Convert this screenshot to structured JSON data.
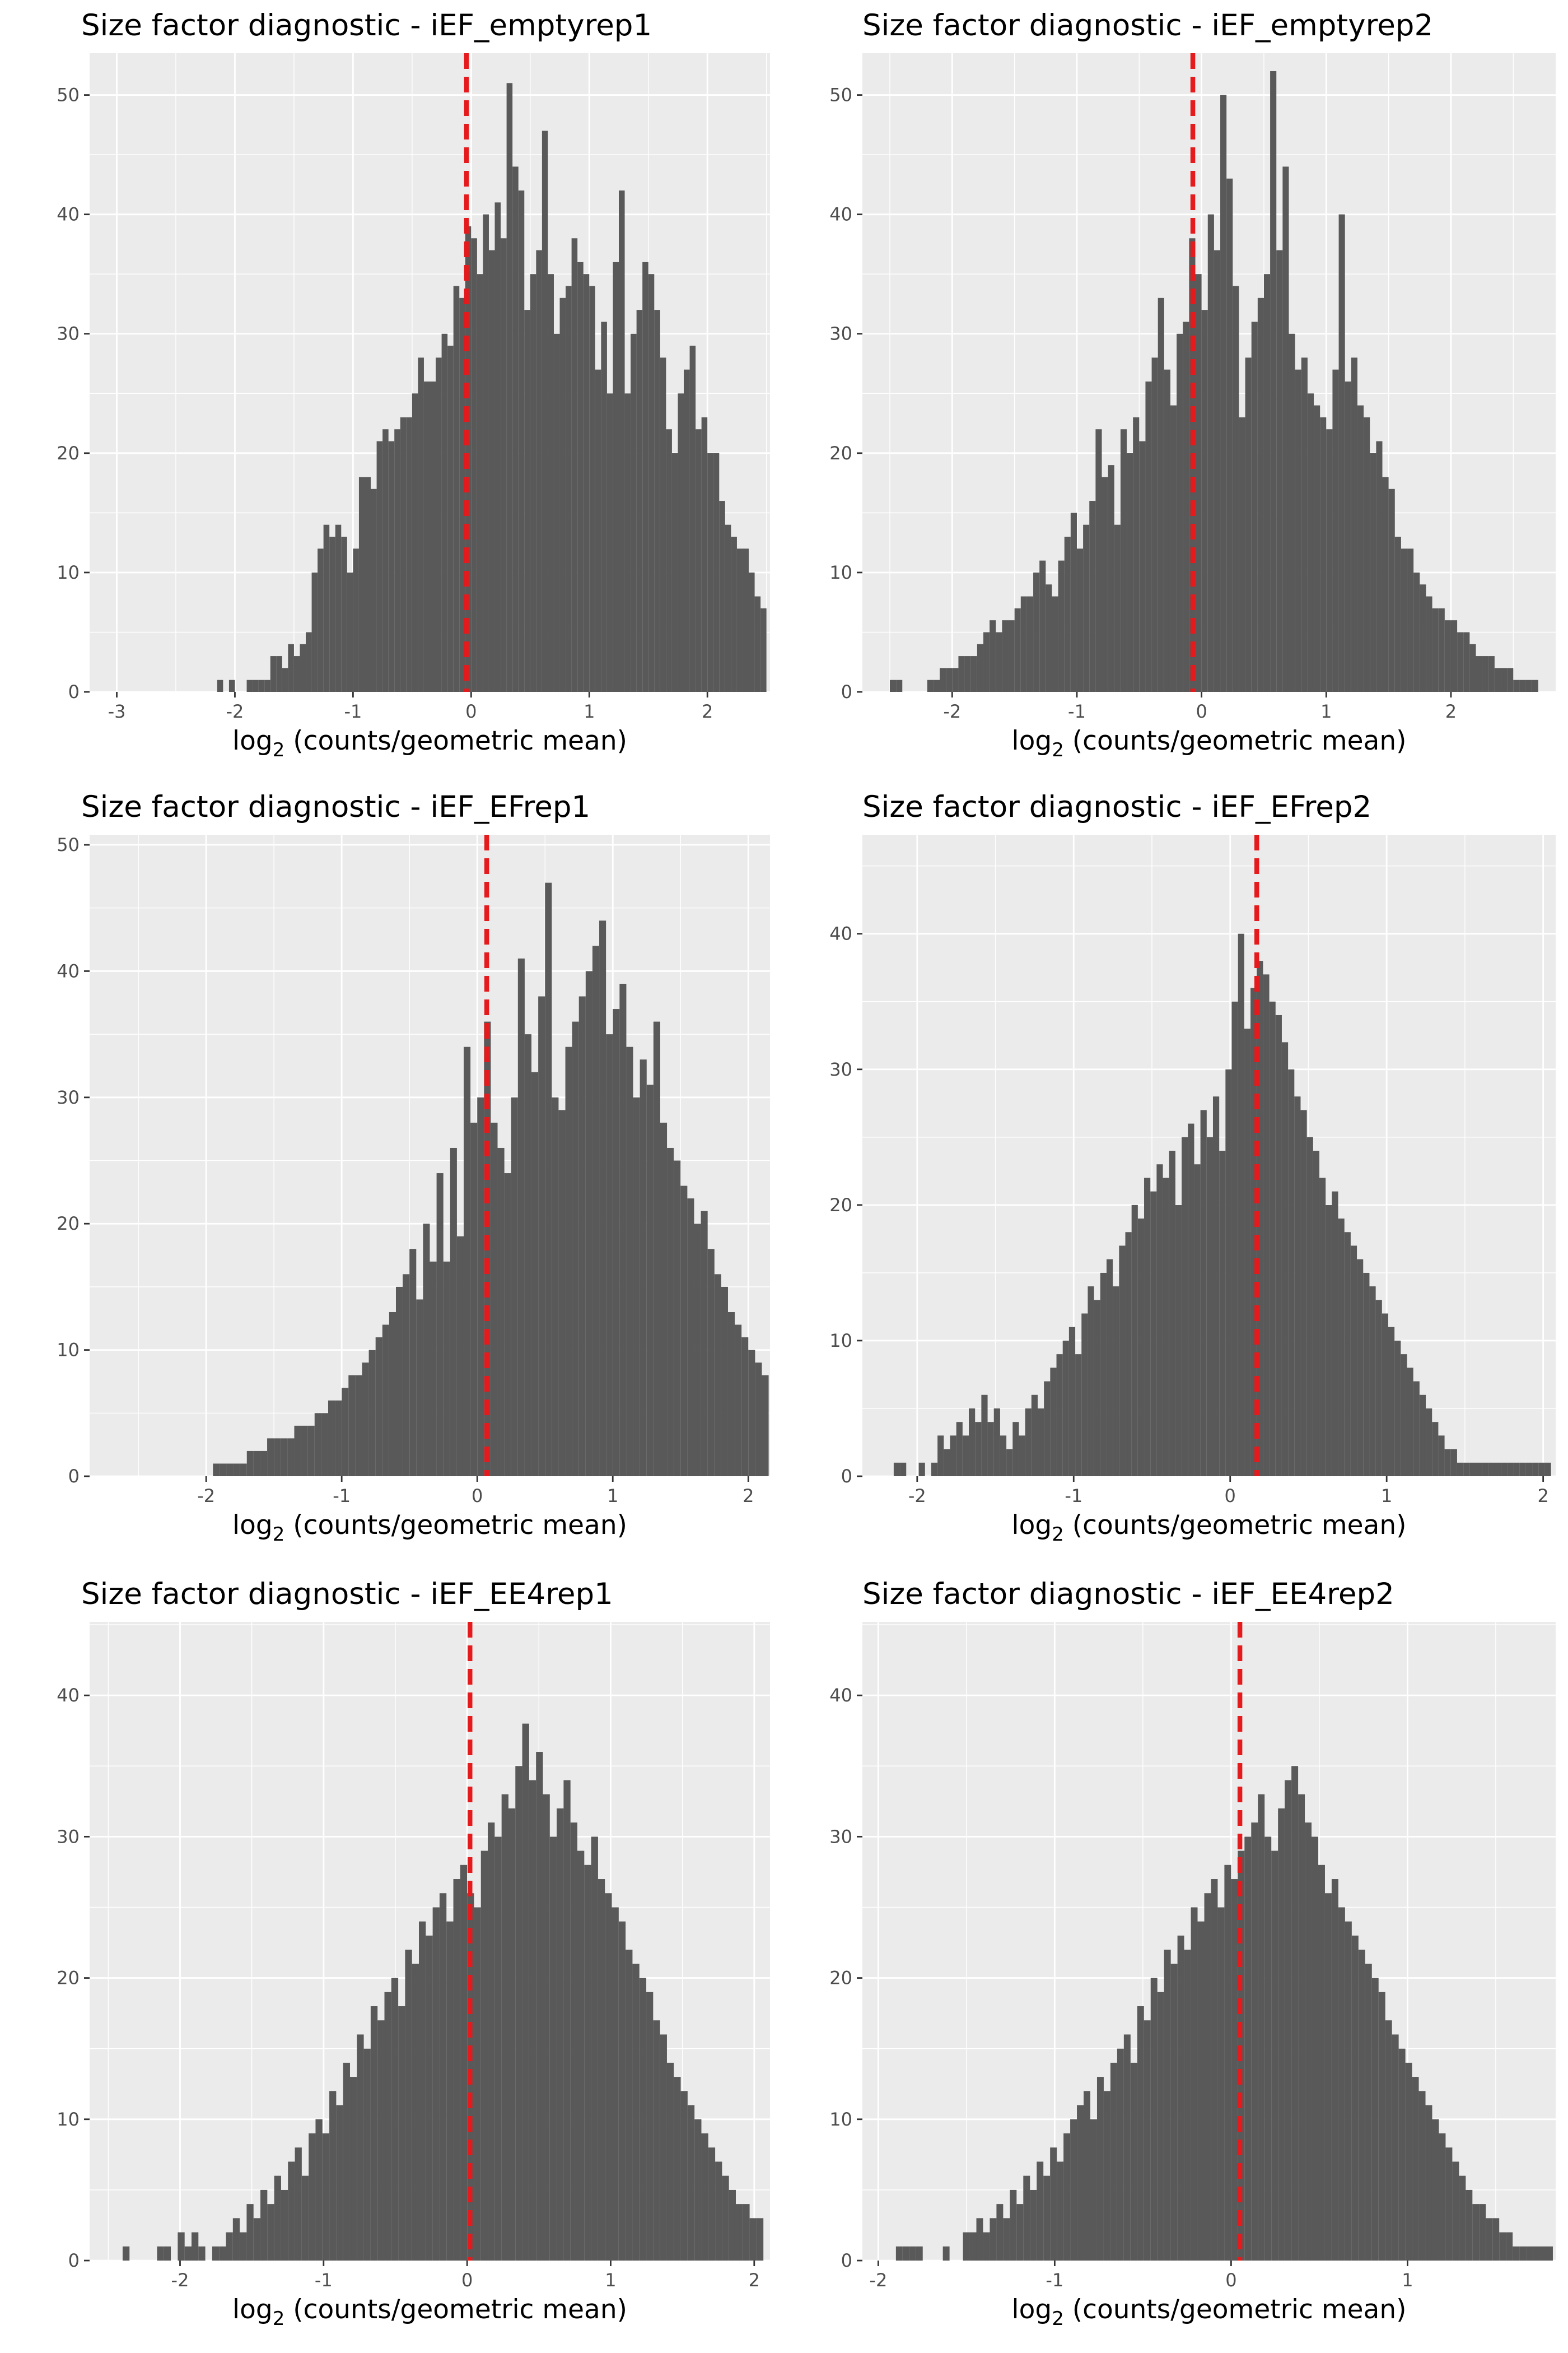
{
  "chart_data": [
    {
      "type": "bar",
      "title": "Size factor diagnostic - iEF_emptyrep1",
      "xlabel": {
        "base": "log",
        "sub": "2",
        "rest": " (counts/geometric mean)"
      },
      "ylabel": "",
      "xlim": [
        -3.23,
        2.53
      ],
      "ylim": [
        0,
        53.5
      ],
      "xticks": [
        -3,
        -2,
        -1,
        0,
        1,
        2
      ],
      "yticks": [
        0,
        10,
        20,
        30,
        40,
        50
      ],
      "vline": -0.04,
      "vline_color": "#E41A1C",
      "bar_color": "#595959",
      "bin_start": -2.15,
      "bin_width": 0.05,
      "values": [
        1,
        0,
        1,
        0,
        0,
        1,
        1,
        1,
        1,
        3,
        3,
        2,
        4,
        3,
        4,
        5,
        10,
        12,
        14,
        13,
        14,
        13,
        10,
        12,
        18,
        18,
        17,
        21,
        22,
        21,
        22,
        23,
        23,
        25,
        28,
        26,
        26,
        28,
        30,
        29,
        34,
        33,
        39,
        38,
        35,
        40,
        37,
        41,
        38,
        51,
        44,
        42,
        32,
        35,
        37,
        47,
        35,
        30,
        33,
        34,
        38,
        36,
        35,
        34,
        27,
        31,
        25,
        36,
        42,
        25,
        30,
        32,
        36,
        35,
        32,
        28,
        22,
        20,
        25,
        27,
        29,
        22,
        23,
        20,
        20,
        16,
        14,
        13,
        12,
        12,
        10,
        8,
        7,
        6,
        5,
        4,
        4,
        3,
        3,
        2,
        2,
        1,
        1,
        1
      ]
    },
    {
      "type": "bar",
      "title": "Size factor diagnostic - iEF_emptyrep2",
      "xlabel": {
        "base": "log",
        "sub": "2",
        "rest": " (counts/geometric mean)"
      },
      "ylabel": "",
      "xlim": [
        -2.72,
        2.84
      ],
      "ylim": [
        0,
        53.5
      ],
      "xticks": [
        -2,
        -1,
        0,
        1,
        2
      ],
      "yticks": [
        0,
        10,
        20,
        30,
        40,
        50
      ],
      "vline": -0.07,
      "vline_color": "#E41A1C",
      "bar_color": "#595959",
      "bin_start": -2.5,
      "bin_width": 0.05,
      "values": [
        1,
        1,
        0,
        0,
        0,
        0,
        1,
        1,
        2,
        2,
        2,
        3,
        3,
        3,
        4,
        5,
        6,
        5,
        6,
        6,
        7,
        8,
        8,
        10,
        11,
        9,
        8,
        11,
        13,
        15,
        12,
        14,
        16,
        22,
        18,
        19,
        14,
        22,
        20,
        23,
        21,
        26,
        28,
        33,
        27,
        24,
        30,
        31,
        38,
        35,
        32,
        40,
        37,
        50,
        43,
        34,
        23,
        28,
        31,
        33,
        35,
        52,
        37,
        44,
        30,
        27,
        28,
        25,
        24,
        23,
        22,
        27,
        40,
        26,
        28,
        24,
        23,
        20,
        21,
        18,
        17,
        13,
        12,
        12,
        10,
        9,
        8,
        7,
        7,
        6,
        6,
        5,
        5,
        4,
        3,
        3,
        3,
        2,
        2,
        2,
        1,
        1,
        1,
        1
      ]
    },
    {
      "type": "bar",
      "title": "Size factor diagnostic - iEF_EFrep1",
      "xlabel": {
        "base": "log",
        "sub": "2",
        "rest": " (counts/geometric mean)"
      },
      "ylabel": "",
      "xlim": [
        -2.86,
        2.16
      ],
      "ylim": [
        0,
        50.8
      ],
      "xticks": [
        -2,
        -1,
        0,
        1,
        2
      ],
      "yticks": [
        0,
        10,
        20,
        30,
        40,
        50
      ],
      "vline": 0.07,
      "vline_color": "#E41A1C",
      "bar_color": "#595959",
      "bin_start": -1.95,
      "bin_width": 0.05,
      "values": [
        1,
        1,
        1,
        1,
        1,
        2,
        2,
        2,
        3,
        3,
        3,
        3,
        4,
        4,
        4,
        5,
        5,
        6,
        6,
        7,
        8,
        8,
        9,
        10,
        11,
        12,
        13,
        15,
        16,
        18,
        14,
        20,
        17,
        24,
        17,
        26,
        19,
        34,
        28,
        30,
        36,
        28,
        26,
        24,
        30,
        41,
        35,
        32,
        38,
        47,
        30,
        29,
        34,
        36,
        38,
        40,
        42,
        44,
        35,
        37,
        39,
        34,
        30,
        33,
        31,
        36,
        28,
        26,
        25,
        23,
        22,
        20,
        21,
        18,
        16,
        15,
        13,
        12,
        11,
        10,
        9,
        8,
        7,
        7,
        6,
        5,
        5,
        4,
        3,
        3,
        2,
        2,
        2,
        1,
        1
      ]
    },
    {
      "type": "bar",
      "title": "Size factor diagnostic - iEF_EFrep2",
      "xlabel": {
        "base": "log",
        "sub": "2",
        "rest": " (counts/geometric mean)"
      },
      "ylabel": "",
      "xlim": [
        -2.35,
        2.08
      ],
      "ylim": [
        0,
        47.3
      ],
      "xticks": [
        -2,
        -1,
        0,
        1,
        2
      ],
      "yticks": [
        0,
        10,
        20,
        30,
        40
      ],
      "vline": 0.17,
      "vline_color": "#E41A1C",
      "bar_color": "#595959",
      "bin_start": -2.15,
      "bin_width": 0.04,
      "values": [
        1,
        1,
        0,
        0,
        1,
        0,
        1,
        3,
        2,
        3,
        4,
        3,
        5,
        4,
        6,
        4,
        5,
        3,
        2,
        4,
        3,
        5,
        6,
        5,
        7,
        8,
        9,
        10,
        11,
        9,
        12,
        14,
        13,
        15,
        16,
        14,
        17,
        18,
        20,
        19,
        22,
        21,
        23,
        22,
        24,
        20,
        25,
        26,
        23,
        27,
        25,
        28,
        24,
        30,
        35,
        40,
        33,
        36,
        38,
        37,
        35,
        34,
        32,
        30,
        28,
        27,
        25,
        24,
        22,
        20,
        21,
        19,
        18,
        17,
        16,
        15,
        14,
        13,
        12,
        11,
        10,
        9,
        8,
        7,
        6,
        5,
        4,
        3,
        2,
        2,
        1,
        1,
        1,
        1,
        1,
        1,
        1,
        1,
        1,
        1,
        1,
        1,
        1,
        1,
        1,
        1,
        1,
        1,
        1,
        1,
        1
      ]
    },
    {
      "type": "bar",
      "title": "Size factor diagnostic - iEF_EE4rep1",
      "xlabel": {
        "base": "log",
        "sub": "2",
        "rest": " (counts/geometric mean)"
      },
      "ylabel": "",
      "xlim": [
        -2.63,
        2.11
      ],
      "ylim": [
        0,
        45.2
      ],
      "xticks": [
        -2,
        -1,
        0,
        1,
        2
      ],
      "yticks": [
        0,
        10,
        20,
        30,
        40
      ],
      "vline": 0.02,
      "vline_color": "#E41A1C",
      "bar_color": "#595959",
      "bin_start": -2.4,
      "bin_width": 0.048,
      "values": [
        1,
        0,
        0,
        0,
        0,
        1,
        1,
        0,
        2,
        1,
        2,
        1,
        0,
        1,
        1,
        2,
        3,
        2,
        4,
        3,
        5,
        4,
        6,
        5,
        7,
        8,
        6,
        9,
        10,
        9,
        12,
        11,
        14,
        13,
        16,
        15,
        18,
        17,
        19,
        20,
        18,
        22,
        21,
        24,
        23,
        25,
        26,
        24,
        27,
        28,
        26,
        25,
        29,
        31,
        30,
        33,
        32,
        35,
        38,
        34,
        36,
        33,
        30,
        32,
        34,
        31,
        29,
        28,
        30,
        27,
        26,
        25,
        24,
        22,
        21,
        20,
        19,
        17,
        16,
        14,
        13,
        12,
        11,
        10,
        9,
        8,
        7,
        6,
        5,
        4,
        4,
        3,
        3,
        2,
        2,
        1,
        1,
        1,
        1,
        1,
        1,
        1,
        1,
        1,
        1,
        1,
        1,
        1,
        1,
        1,
        1
      ]
    },
    {
      "type": "bar",
      "title": "Size factor diagnostic - iEF_EE4rep2",
      "xlabel": {
        "base": "log",
        "sub": "2",
        "rest": " (counts/geometric mean)"
      },
      "ylabel": "",
      "xlim": [
        -2.09,
        1.84
      ],
      "ylim": [
        0,
        45.2
      ],
      "xticks": [
        -2,
        -1,
        0,
        1
      ],
      "yticks": [
        0,
        10,
        20,
        30,
        40
      ],
      "vline": 0.05,
      "vline_color": "#E41A1C",
      "bar_color": "#595959",
      "bin_start": -1.9,
      "bin_width": 0.038,
      "values": [
        1,
        1,
        1,
        1,
        0,
        0,
        0,
        1,
        0,
        0,
        2,
        2,
        3,
        2,
        3,
        4,
        3,
        5,
        4,
        6,
        5,
        7,
        6,
        8,
        7,
        9,
        10,
        11,
        12,
        10,
        13,
        12,
        14,
        15,
        16,
        14,
        18,
        17,
        20,
        19,
        22,
        21,
        23,
        22,
        25,
        24,
        26,
        27,
        25,
        28,
        27,
        29,
        30,
        31,
        33,
        30,
        29,
        32,
        34,
        35,
        33,
        31,
        30,
        28,
        26,
        27,
        25,
        24,
        23,
        22,
        21,
        20,
        19,
        17,
        16,
        15,
        14,
        13,
        12,
        11,
        10,
        9,
        8,
        7,
        6,
        5,
        4,
        4,
        3,
        3,
        2,
        2,
        1,
        1,
        1,
        1,
        1,
        1,
        1,
        1,
        1,
        1,
        1,
        1,
        1,
        1
      ]
    }
  ]
}
